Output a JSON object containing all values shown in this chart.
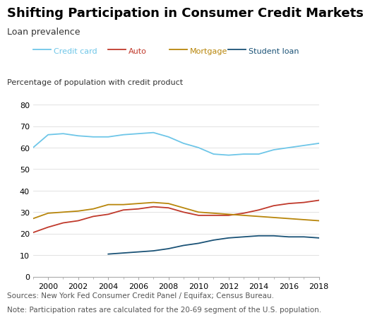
{
  "title": "Shifting Participation in Consumer Credit Markets",
  "subtitle": "Loan prevalence",
  "ylabel": "Percentage of population with credit product",
  "sources": "Sources: New York Fed Consumer Credit Panel / Equifax; Census Bureau.",
  "note": "Note: Participation rates are calculated for the 20-69 segment of the U.S. population.",
  "ylim": [
    0,
    80
  ],
  "yticks": [
    0,
    10,
    20,
    30,
    40,
    50,
    60,
    70,
    80
  ],
  "xlim": [
    1999,
    2018
  ],
  "xticks": [
    2000,
    2002,
    2004,
    2006,
    2008,
    2010,
    2012,
    2014,
    2016,
    2018
  ],
  "series": {
    "Credit card": {
      "color": "#6ec6e8",
      "years": [
        1999,
        2000,
        2001,
        2002,
        2003,
        2004,
        2005,
        2006,
        2007,
        2008,
        2009,
        2010,
        2011,
        2012,
        2013,
        2014,
        2015,
        2016,
        2017,
        2018
      ],
      "values": [
        60,
        66,
        66.5,
        65.5,
        65,
        65,
        66,
        66.5,
        67,
        65,
        62,
        60,
        57,
        56.5,
        57,
        57,
        59,
        60,
        61,
        62
      ]
    },
    "Auto": {
      "color": "#c0392b",
      "years": [
        1999,
        2000,
        2001,
        2002,
        2003,
        2004,
        2005,
        2006,
        2007,
        2008,
        2009,
        2010,
        2011,
        2012,
        2013,
        2014,
        2015,
        2016,
        2017,
        2018
      ],
      "values": [
        20.5,
        23,
        25,
        26,
        28,
        29,
        31,
        31.5,
        32.5,
        32,
        30,
        28.5,
        28.5,
        28.5,
        29.5,
        31,
        33,
        34,
        34.5,
        35.5
      ]
    },
    "Mortgage": {
      "color": "#b8860b",
      "years": [
        1999,
        2000,
        2001,
        2002,
        2003,
        2004,
        2005,
        2006,
        2007,
        2008,
        2009,
        2010,
        2011,
        2012,
        2013,
        2014,
        2015,
        2016,
        2017,
        2018
      ],
      "values": [
        27,
        29.5,
        30,
        30.5,
        31.5,
        33.5,
        33.5,
        34,
        34.5,
        34,
        32,
        30,
        29.5,
        29,
        28.5,
        28,
        27.5,
        27,
        26.5,
        26
      ]
    },
    "Student loan": {
      "color": "#1a5276",
      "years": [
        2004,
        2005,
        2006,
        2007,
        2008,
        2009,
        2010,
        2011,
        2012,
        2013,
        2014,
        2015,
        2016,
        2017,
        2018
      ],
      "values": [
        10.5,
        11,
        11.5,
        12,
        13,
        14.5,
        15.5,
        17,
        18,
        18.5,
        19,
        19,
        18.5,
        18.5,
        18
      ]
    }
  },
  "background_color": "#ffffff",
  "title_fontsize": 13,
  "subtitle_fontsize": 9,
  "axis_label_fontsize": 8,
  "tick_fontsize": 8,
  "footnote_fontsize": 7.5,
  "legend_fontsize": 8
}
